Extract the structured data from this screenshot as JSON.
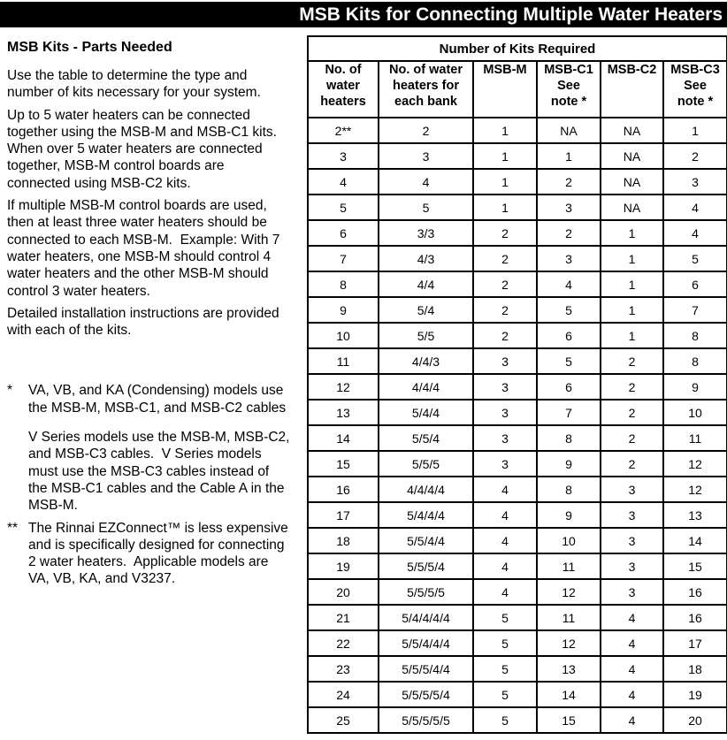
{
  "title": "MSB Kits for Connecting Multiple Water Heaters",
  "colors": {
    "title_bar_bg": "#000000",
    "title_text": "#ffffff",
    "body_text": "#000000",
    "table_border": "#000000"
  },
  "info": {
    "heading": "MSB Kits - Parts Needed",
    "paragraphs": [
      "Use the table to determine the type and\nnumber of kits necessary for your system.",
      "Up to 5 water heaters can be connected\ntogether using the MSB-M and MSB-C1 kits.\nWhen over 5 water heaters are connected\ntogether, MSB-M control boards are\nconnected using MSB-C2 kits.",
      "If multiple MSB-M control boards are used,\nthen at least three water heaters should be\nconnected to each MSB-M.  Example: With 7\nwater heaters, one MSB-M should control 4\nwater heaters and the other MSB-M should\ncontrol 3 water heaters.",
      "Detailed installation instructions are provided\nwith each of the kits."
    ],
    "footnotes": [
      {
        "marker": "*",
        "paragraphs": [
          "VA, VB, and KA (Condensing) models use\nthe MSB-M, MSB-C1, and MSB-C2 cables",
          "V Series models use the MSB-M, MSB-C2,\nand MSB-C3 cables.  V Series models\nmust use the MSB-C3 cables instead of\nthe MSB-C1 cables and the Cable A in the\nMSB-M."
        ]
      },
      {
        "marker": "**",
        "paragraphs": [
          "The Rinnai EZConnect™ is less expensive\nand is specifically designed for connecting\n2 water heaters.  Applicable models are\nVA, VB, KA, and V3237."
        ]
      }
    ]
  },
  "table": {
    "spanning_header": "Number of Kits Required",
    "columns": [
      "No. of\nwater\nheaters",
      "No. of water\nheaters for\neach bank",
      "MSB-M",
      "MSB-C1\nSee\nnote *",
      "MSB-C2",
      "MSB-C3\nSee\nnote *"
    ],
    "rows": [
      [
        "2**",
        "2",
        "1",
        "NA",
        "NA",
        "1"
      ],
      [
        "3",
        "3",
        "1",
        "1",
        "NA",
        "2"
      ],
      [
        "4",
        "4",
        "1",
        "2",
        "NA",
        "3"
      ],
      [
        "5",
        "5",
        "1",
        "3",
        "NA",
        "4"
      ],
      [
        "6",
        "3/3",
        "2",
        "2",
        "1",
        "4"
      ],
      [
        "7",
        "4/3",
        "2",
        "3",
        "1",
        "5"
      ],
      [
        "8",
        "4/4",
        "2",
        "4",
        "1",
        "6"
      ],
      [
        "9",
        "5/4",
        "2",
        "5",
        "1",
        "7"
      ],
      [
        "10",
        "5/5",
        "2",
        "6",
        "1",
        "8"
      ],
      [
        "11",
        "4/4/3",
        "3",
        "5",
        "2",
        "8"
      ],
      [
        "12",
        "4/4/4",
        "3",
        "6",
        "2",
        "9"
      ],
      [
        "13",
        "5/4/4",
        "3",
        "7",
        "2",
        "10"
      ],
      [
        "14",
        "5/5/4",
        "3",
        "8",
        "2",
        "11"
      ],
      [
        "15",
        "5/5/5",
        "3",
        "9",
        "2",
        "12"
      ],
      [
        "16",
        "4/4/4/4",
        "4",
        "8",
        "3",
        "12"
      ],
      [
        "17",
        "5/4/4/4",
        "4",
        "9",
        "3",
        "13"
      ],
      [
        "18",
        "5/5/4/4",
        "4",
        "10",
        "3",
        "14"
      ],
      [
        "19",
        "5/5/5/4",
        "4",
        "11",
        "3",
        "15"
      ],
      [
        "20",
        "5/5/5/5",
        "4",
        "12",
        "3",
        "16"
      ],
      [
        "21",
        "5/4/4/4/4",
        "5",
        "11",
        "4",
        "16"
      ],
      [
        "22",
        "5/5/4/4/4",
        "5",
        "12",
        "4",
        "17"
      ],
      [
        "23",
        "5/5/5/4/4",
        "5",
        "13",
        "4",
        "18"
      ],
      [
        "24",
        "5/5/5/5/4",
        "5",
        "14",
        "4",
        "19"
      ],
      [
        "25",
        "5/5/5/5/5",
        "5",
        "15",
        "4",
        "20"
      ]
    ]
  }
}
